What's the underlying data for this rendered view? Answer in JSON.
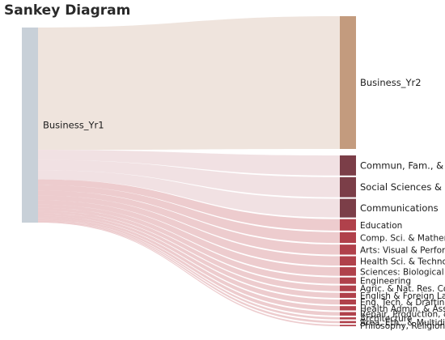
{
  "title": "Sankey Diagram",
  "colors": {
    "source_node": "#c8d0d8",
    "business_yr2_node": "#c39b7e",
    "dark_node": "#7b3e48",
    "red_node": "#b0414b",
    "link_neutral": "#ede1d9",
    "link_pink": "#e5c9cc",
    "link_red": "#d68d93"
  },
  "chart_data": {
    "type": "sankey",
    "source": {
      "name": "Business_Yr1"
    },
    "targets": [
      {
        "name": "Business_Yr2",
        "value": 1700
      },
      {
        "name": "Commun, Fam., & Pers. Services",
        "value": 140
      },
      {
        "name": "Social Sciences & History",
        "value": 140
      },
      {
        "name": "Communications",
        "value": 130
      },
      {
        "name": "Education",
        "value": 80
      },
      {
        "name": "Comp. Sci. & Mathematics",
        "value": 75
      },
      {
        "name": "Arts: Visual & Performing",
        "value": 70
      },
      {
        "name": "Health Sci. & Technologies",
        "value": 65
      },
      {
        "name": "Sciences: Biological & Physical",
        "value": 60
      },
      {
        "name": "Engineering",
        "value": 45
      },
      {
        "name": "Agric. & Nat. Res. Conservation",
        "value": 40
      },
      {
        "name": "English & Foreign Languages",
        "value": 35
      },
      {
        "name": "Eng. Tech. & Drafting",
        "value": 35
      },
      {
        "name": "Health Admin. & Assisting",
        "value": 30
      },
      {
        "name": "Repair, Production, & Constr.",
        "value": 25
      },
      {
        "name": "Architecture",
        "value": 15
      },
      {
        "name": "Area, Eth., & Multidisciplinary Studies",
        "value": 15
      },
      {
        "name": "Philosophy, Religion, & Theology",
        "value": 10
      }
    ]
  }
}
